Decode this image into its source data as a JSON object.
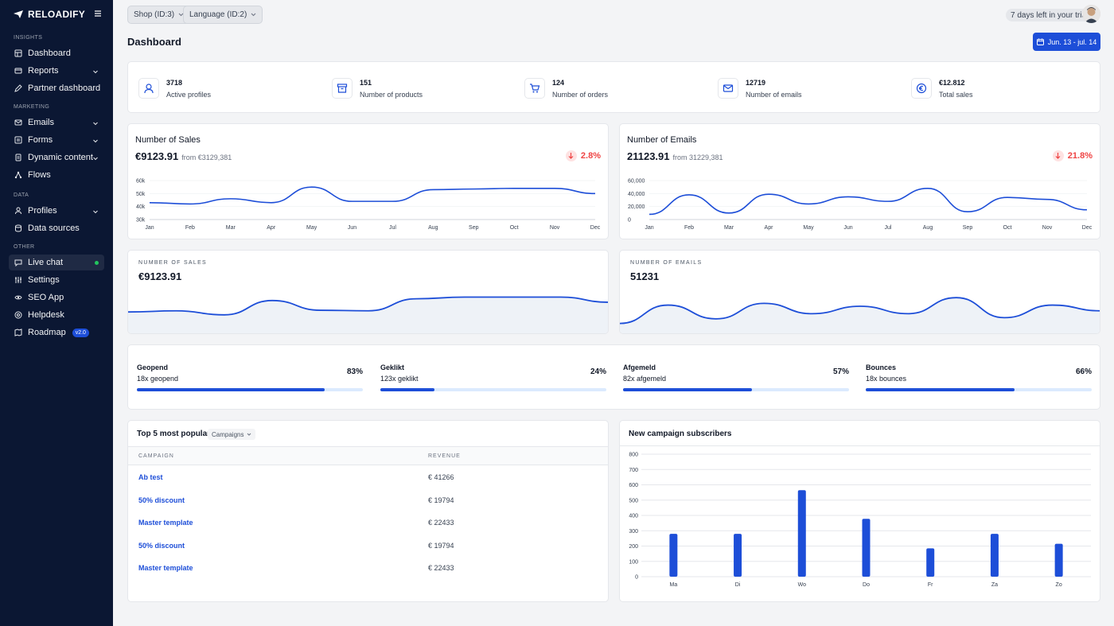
{
  "brand": {
    "name": "RELOADIFY"
  },
  "sidebar": {
    "sections": {
      "insights": "INSIGHTS",
      "marketing": "MARKETING",
      "data": "DATA",
      "other": "OTHER"
    },
    "items": [
      {
        "label": "Dashboard",
        "icon": "dashboard-icon"
      },
      {
        "label": "Reports",
        "icon": "reports-icon"
      },
      {
        "label": "Partner dashboard",
        "icon": "pencil-icon"
      },
      {
        "label": "Emails",
        "icon": "mail-icon"
      },
      {
        "label": "Forms",
        "icon": "forms-icon"
      },
      {
        "label": "Dynamic content",
        "icon": "document-icon"
      },
      {
        "label": "Flows",
        "icon": "flows-icon"
      },
      {
        "label": "Profiles",
        "icon": "user-icon"
      },
      {
        "label": "Data sources",
        "icon": "database-icon"
      },
      {
        "label": "Live chat",
        "icon": "chat-icon"
      },
      {
        "label": "Settings",
        "icon": "sliders-icon"
      },
      {
        "label": "SEO App",
        "icon": "eye-icon"
      },
      {
        "label": "Helpdesk",
        "icon": "help-icon"
      },
      {
        "label": "Roadmap",
        "icon": "map-icon",
        "badge": "v2.0"
      }
    ]
  },
  "topbar": {
    "shop": "Shop (ID:3)",
    "language": "Language (ID:2)",
    "trial": "7 days left in your trial"
  },
  "page": {
    "title": "Dashboard",
    "date_range": "Jun. 13 - jul. 14"
  },
  "stats": [
    {
      "value": "3718",
      "label": "Active profiles",
      "icon": "user-icon"
    },
    {
      "value": "151",
      "label": "Number of products",
      "icon": "archive-icon"
    },
    {
      "value": "124",
      "label": "Number of orders",
      "icon": "cart-icon"
    },
    {
      "value": "12719",
      "label": "Number of emails",
      "icon": "mail-icon"
    },
    {
      "value": "€12.812",
      "label": "Total sales",
      "icon": "euro-icon"
    }
  ],
  "sales_card": {
    "title": "Number of Sales",
    "value": "€9123.91",
    "from": "from €3129,381",
    "change": "2.8%"
  },
  "emails_card": {
    "title": "Number of Emails",
    "value": "21123.91",
    "from": "from 31229,381",
    "change": "21.8%"
  },
  "spark_sales": {
    "title": "NUMBER OF SALES",
    "value": "€9123.91"
  },
  "spark_emails": {
    "title": "NUMBER OF EMAILS",
    "value": "51231"
  },
  "progress": [
    {
      "title": "Geopend",
      "sub": "18x geopend",
      "percent": "83%",
      "value": 83
    },
    {
      "title": "Geklikt",
      "sub": "123x geklikt",
      "percent": "24%",
      "value": 24
    },
    {
      "title": "Afgemeld",
      "sub": "82x afgemeld",
      "percent": "57%",
      "value": 57
    },
    {
      "title": "Bounces",
      "sub": "18x bounces",
      "percent": "66%",
      "value": 66
    }
  ],
  "top5": {
    "title": "Top 5 most popular",
    "filter": "Campaigns",
    "col_campaign": "CAMPAIGN",
    "col_revenue": "REVENUE",
    "rows": [
      {
        "campaign": "Ab test",
        "revenue": "€ 41266"
      },
      {
        "campaign": "50% discount",
        "revenue": "€ 19794"
      },
      {
        "campaign": "Master template",
        "revenue": "€ 22433"
      },
      {
        "campaign": "50% discount",
        "revenue": "€ 19794"
      },
      {
        "campaign": "Master template",
        "revenue": "€ 22433"
      }
    ]
  },
  "subscribers": {
    "title": "New campaign subscribers"
  },
  "colors": {
    "sidebar": "#0b1733",
    "accent": "#1d4ed8",
    "negative": "#ef4444",
    "online": "#22c55e"
  },
  "chart_data": [
    {
      "type": "line",
      "x": [
        "Jan",
        "Feb",
        "Mar",
        "Apr",
        "May",
        "Jun",
        "Jul",
        "Aug",
        "Sep",
        "Oct",
        "Nov",
        "Dec"
      ],
      "values": [
        43000,
        42000,
        46000,
        43000,
        55000,
        44000,
        44000,
        53000,
        53500,
        54000,
        54000,
        50000
      ],
      "yticks": [
        "60k",
        "50k",
        "40k",
        "30k"
      ],
      "ylim": [
        30000,
        60000
      ]
    },
    {
      "type": "line",
      "x": [
        "Jan",
        "Feb",
        "Mar",
        "Apr",
        "May",
        "Jun",
        "Jul",
        "Aug",
        "Sep",
        "Oct",
        "Nov",
        "Dec"
      ],
      "values": [
        8000,
        38000,
        10000,
        39000,
        24000,
        35000,
        28000,
        48000,
        12000,
        34000,
        31000,
        15000
      ],
      "yticks": [
        "60,000",
        "40,000",
        "20,000",
        "0"
      ],
      "ylim": [
        0,
        60000
      ]
    },
    {
      "type": "area",
      "values": [
        40,
        42,
        35,
        60,
        43,
        42,
        63,
        66,
        66,
        66,
        57
      ],
      "ylim": [
        0,
        100
      ]
    },
    {
      "type": "area",
      "values": [
        20,
        52,
        28,
        55,
        37,
        50,
        37,
        65,
        30,
        52,
        42
      ],
      "ylim": [
        0,
        100
      ]
    },
    {
      "type": "bar",
      "categories": [
        "Ma",
        "Di",
        "Wo",
        "Do",
        "Fr",
        "Za",
        "Zo"
      ],
      "values": [
        280,
        280,
        565,
        378,
        185,
        280,
        215
      ],
      "yticks": [
        "800",
        "700",
        "600",
        "500",
        "400",
        "300",
        "200",
        "100",
        "0"
      ],
      "ylim": [
        0,
        800
      ]
    }
  ]
}
